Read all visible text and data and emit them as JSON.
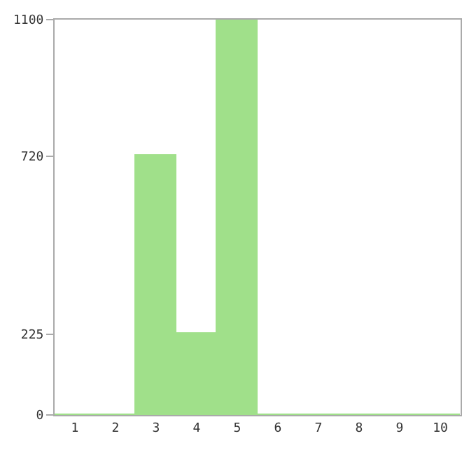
{
  "chart_data": {
    "type": "bar",
    "categories": [
      "1",
      "2",
      "3",
      "4",
      "5",
      "6",
      "7",
      "8",
      "9",
      "10"
    ],
    "values": [
      0,
      0,
      720,
      225,
      1100,
      0,
      0,
      0,
      0,
      0
    ],
    "color": "#a0e08a",
    "ylim": [
      0,
      1100
    ],
    "yticks": [
      0,
      225,
      720,
      1100
    ]
  }
}
